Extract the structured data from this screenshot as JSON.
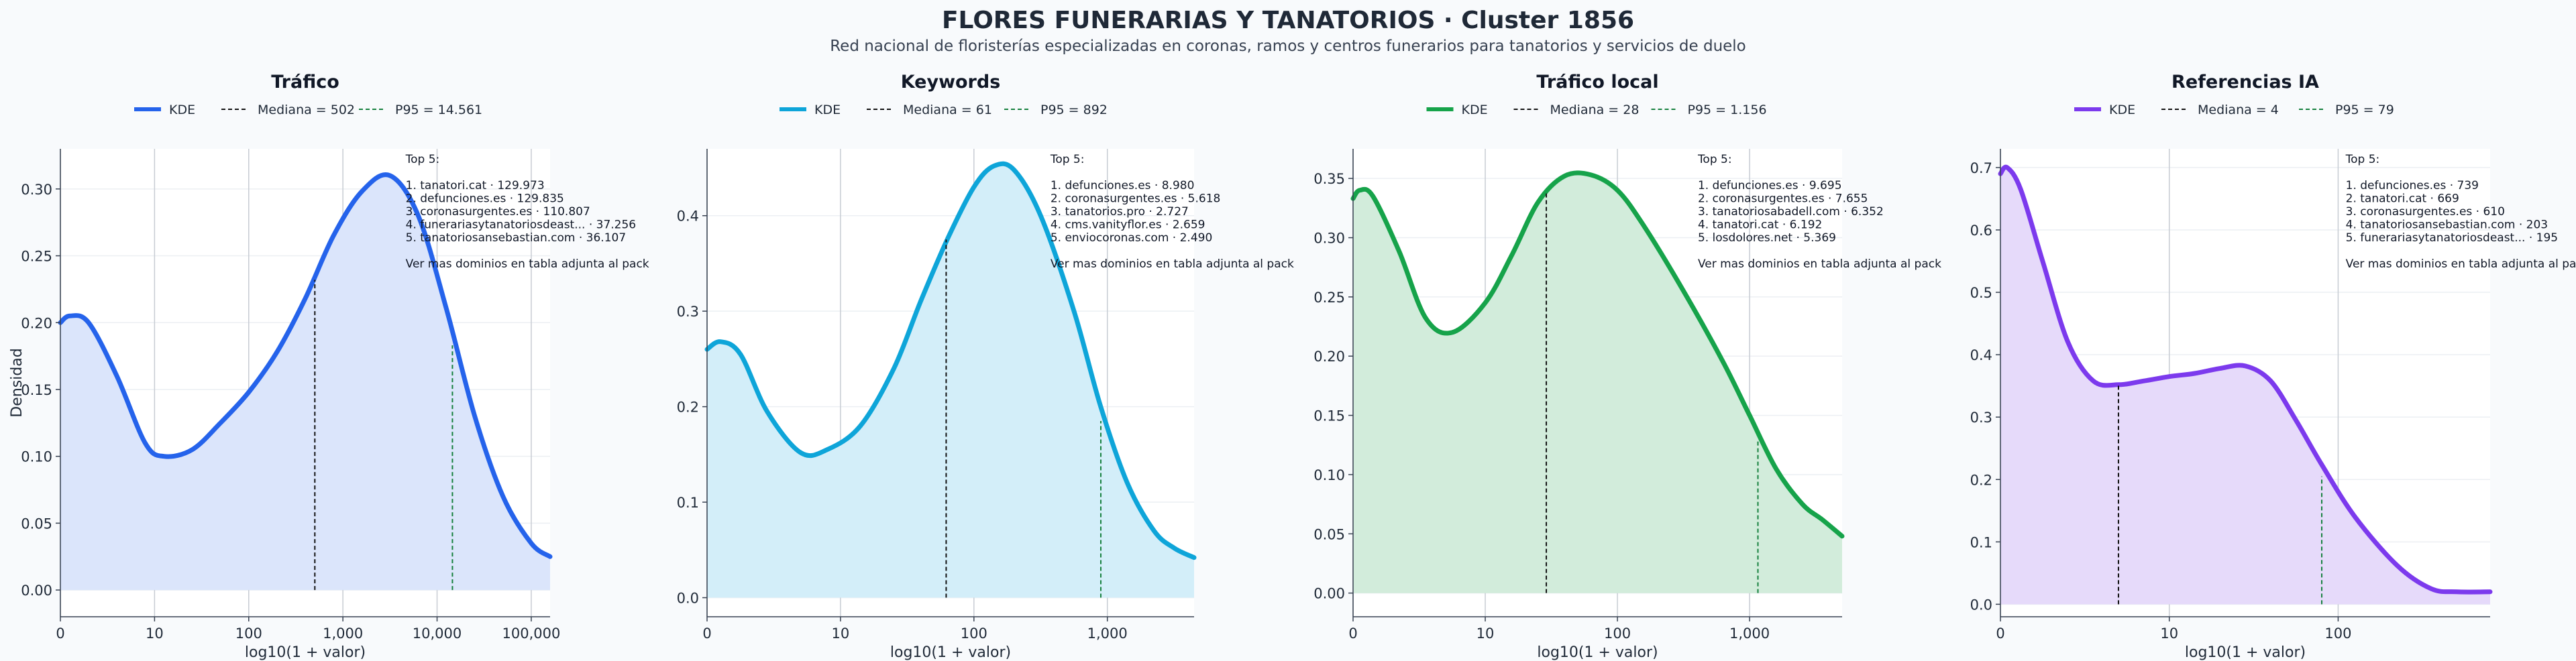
{
  "header": {
    "title": "FLORES FUNERARIAS Y TANATORIOS · Cluster 1856",
    "subtitle": "Red nacional de floristerías especializadas en coronas, ramos y centros funerarios para tanatorios y servicios de duelo"
  },
  "colors": {
    "grid_vertical": "#c7ccd3",
    "grid_horizontal": "#eceff3",
    "median_line": "#111111",
    "p95_line": "#15803d",
    "axis": "#374151"
  },
  "chart_data": [
    {
      "type": "area",
      "title": "Tráfico",
      "color": "#2563eb",
      "fill": "#dbe5fb",
      "xlabel": "log10(1 + valor)",
      "ylabel": "Densidad",
      "xlim": [
        0,
        5.2
      ],
      "ylim": [
        -0.02,
        0.33
      ],
      "xticks": [
        {
          "v": 0,
          "label": "0"
        },
        {
          "v": 1,
          "label": "10"
        },
        {
          "v": 2,
          "label": "100"
        },
        {
          "v": 3,
          "label": "1,000"
        },
        {
          "v": 4,
          "label": "10,000"
        },
        {
          "v": 5,
          "label": "100,000"
        }
      ],
      "yticks": [
        {
          "v": 0,
          "label": "0.00"
        },
        {
          "v": 0.05,
          "label": "0.05"
        },
        {
          "v": 0.1,
          "label": "0.10"
        },
        {
          "v": 0.15,
          "label": "0.15"
        },
        {
          "v": 0.2,
          "label": "0.20"
        },
        {
          "v": 0.25,
          "label": "0.25"
        },
        {
          "v": 0.3,
          "label": "0.30"
        }
      ],
      "x": [
        0.0,
        0.1,
        0.3,
        0.6,
        0.9,
        1.1,
        1.4,
        1.7,
        2.0,
        2.3,
        2.6,
        2.9,
        3.2,
        3.5,
        3.8,
        4.1,
        4.4,
        4.7,
        5.0,
        5.2
      ],
      "y": [
        0.2,
        0.205,
        0.2,
        0.16,
        0.11,
        0.1,
        0.105,
        0.125,
        0.148,
        0.178,
        0.218,
        0.265,
        0.298,
        0.31,
        0.28,
        0.21,
        0.13,
        0.07,
        0.035,
        0.025
      ],
      "median": {
        "x": 2.702,
        "y": 0.232
      },
      "p95": {
        "x": 4.163,
        "y": 0.183
      },
      "legend": {
        "kde": "KDE",
        "median": "Mediana = 502",
        "p95": "P95 = 14.561"
      },
      "annotation": [
        "Top 5:",
        "",
        "1. tanatori.cat · 129.973",
        "2. defunciones.es · 129.835",
        "3. coronasurgentes.es · 110.807",
        "4. funerariasytanatoriosdeast... · 37.256",
        "5. tanatoriosansebastian.com · 36.107",
        "",
        "Ver mas dominios en tabla adjunta al pack"
      ]
    },
    {
      "type": "area",
      "title": "Keywords",
      "color": "#0ea5d9",
      "fill": "#d3eef9",
      "xlabel": "log10(1 + valor)",
      "ylabel": "",
      "xlim": [
        0,
        3.65
      ],
      "ylim": [
        -0.02,
        0.47
      ],
      "xticks": [
        {
          "v": 0,
          "label": "0"
        },
        {
          "v": 1,
          "label": "10"
        },
        {
          "v": 2,
          "label": "100"
        },
        {
          "v": 3,
          "label": "1,000"
        }
      ],
      "yticks": [
        {
          "v": 0,
          "label": "0.0"
        },
        {
          "v": 0.1,
          "label": "0.1"
        },
        {
          "v": 0.2,
          "label": "0.2"
        },
        {
          "v": 0.3,
          "label": "0.3"
        },
        {
          "v": 0.4,
          "label": "0.4"
        }
      ],
      "x": [
        0.0,
        0.1,
        0.25,
        0.45,
        0.7,
        0.9,
        1.15,
        1.4,
        1.6,
        1.8,
        2.0,
        2.15,
        2.3,
        2.5,
        2.75,
        2.95,
        3.15,
        3.35,
        3.5,
        3.65
      ],
      "y": [
        0.26,
        0.268,
        0.255,
        0.195,
        0.152,
        0.155,
        0.18,
        0.24,
        0.31,
        0.375,
        0.43,
        0.452,
        0.448,
        0.4,
        0.3,
        0.2,
        0.12,
        0.07,
        0.052,
        0.042
      ],
      "median": {
        "x": 1.792,
        "y": 0.375
      },
      "p95": {
        "x": 2.951,
        "y": 0.185
      },
      "legend": {
        "kde": "KDE",
        "median": "Mediana = 61",
        "p95": "P95 = 892"
      },
      "annotation": [
        "Top 5:",
        "",
        "1. defunciones.es · 8.980",
        "2. coronasurgentes.es · 5.618",
        "3. tanatorios.pro · 2.727",
        "4. cms.vanityflor.es · 2.659",
        "5. enviocoronas.com · 2.490",
        "",
        "Ver mas dominios en tabla adjunta al pack"
      ]
    },
    {
      "type": "area",
      "title": "Tráfico local",
      "color": "#16a34a",
      "fill": "#d2ecdb",
      "xlabel": "log10(1 + valor)",
      "ylabel": "",
      "xlim": [
        0,
        3.7
      ],
      "ylim": [
        -0.02,
        0.375
      ],
      "xticks": [
        {
          "v": 0,
          "label": "0"
        },
        {
          "v": 1,
          "label": "10"
        },
        {
          "v": 2,
          "label": "100"
        },
        {
          "v": 3,
          "label": "1,000"
        }
      ],
      "yticks": [
        {
          "v": 0,
          "label": "0.00"
        },
        {
          "v": 0.05,
          "label": "0.05"
        },
        {
          "v": 0.1,
          "label": "0.10"
        },
        {
          "v": 0.15,
          "label": "0.15"
        },
        {
          "v": 0.2,
          "label": "0.20"
        },
        {
          "v": 0.25,
          "label": "0.25"
        },
        {
          "v": 0.3,
          "label": "0.30"
        },
        {
          "v": 0.35,
          "label": "0.35"
        }
      ],
      "x": [
        0.0,
        0.05,
        0.15,
        0.35,
        0.55,
        0.75,
        1.0,
        1.2,
        1.4,
        1.6,
        1.8,
        2.0,
        2.2,
        2.5,
        2.8,
        3.0,
        3.2,
        3.4,
        3.55,
        3.7
      ],
      "y": [
        0.333,
        0.34,
        0.335,
        0.288,
        0.232,
        0.22,
        0.245,
        0.285,
        0.33,
        0.352,
        0.353,
        0.34,
        0.31,
        0.255,
        0.195,
        0.15,
        0.105,
        0.075,
        0.062,
        0.048
      ],
      "median": {
        "x": 1.462,
        "y": 0.338
      },
      "p95": {
        "x": 3.063,
        "y": 0.128
      },
      "legend": {
        "kde": "KDE",
        "median": "Mediana = 28",
        "p95": "P95 = 1.156"
      },
      "annotation": [
        "Top 5:",
        "",
        "1. defunciones.es · 9.695",
        "2. coronasurgentes.es · 7.655",
        "3. tanatoriosabadell.com · 6.352",
        "4. tanatori.cat · 6.192",
        "5. losdolores.net · 5.369",
        "",
        "Ver mas dominios en tabla adjunta al pack"
      ]
    },
    {
      "type": "area",
      "title": "Referencias IA",
      "color": "#7c3aed",
      "fill": "#e6dafa",
      "xlabel": "log10(1 + valor)",
      "ylabel": "",
      "xlim": [
        0,
        2.9
      ],
      "ylim": [
        -0.02,
        0.73
      ],
      "xticks": [
        {
          "v": 0,
          "label": "0"
        },
        {
          "v": 1,
          "label": "10"
        },
        {
          "v": 2,
          "label": "100"
        }
      ],
      "yticks": [
        {
          "v": 0,
          "label": "0.0"
        },
        {
          "v": 0.1,
          "label": "0.1"
        },
        {
          "v": 0.2,
          "label": "0.2"
        },
        {
          "v": 0.3,
          "label": "0.3"
        },
        {
          "v": 0.4,
          "label": "0.4"
        },
        {
          "v": 0.5,
          "label": "0.5"
        },
        {
          "v": 0.6,
          "label": "0.6"
        },
        {
          "v": 0.7,
          "label": "0.7"
        }
      ],
      "x": [
        0.0,
        0.04,
        0.12,
        0.25,
        0.4,
        0.55,
        0.7,
        0.85,
        1.0,
        1.15,
        1.3,
        1.45,
        1.6,
        1.75,
        1.9,
        2.1,
        2.35,
        2.55,
        2.7,
        2.9
      ],
      "y": [
        0.69,
        0.7,
        0.665,
        0.55,
        0.42,
        0.358,
        0.352,
        0.358,
        0.365,
        0.37,
        0.378,
        0.382,
        0.358,
        0.295,
        0.225,
        0.14,
        0.062,
        0.025,
        0.02,
        0.02
      ],
      "median": {
        "x": 0.699,
        "y": 0.352
      },
      "p95": {
        "x": 1.903,
        "y": 0.205
      },
      "legend": {
        "kde": "KDE",
        "median": "Mediana = 4",
        "p95": "P95 = 79"
      },
      "annotation": [
        "Top 5:",
        "",
        "1. defunciones.es · 739",
        "2. tanatori.cat · 669",
        "3. coronasurgentes.es · 610",
        "4. tanatoriosansebastian.com · 203",
        "5. funerariasytanatoriosdeast... · 195",
        "",
        "Ver mas dominios en tabla adjunta al pack"
      ]
    }
  ]
}
